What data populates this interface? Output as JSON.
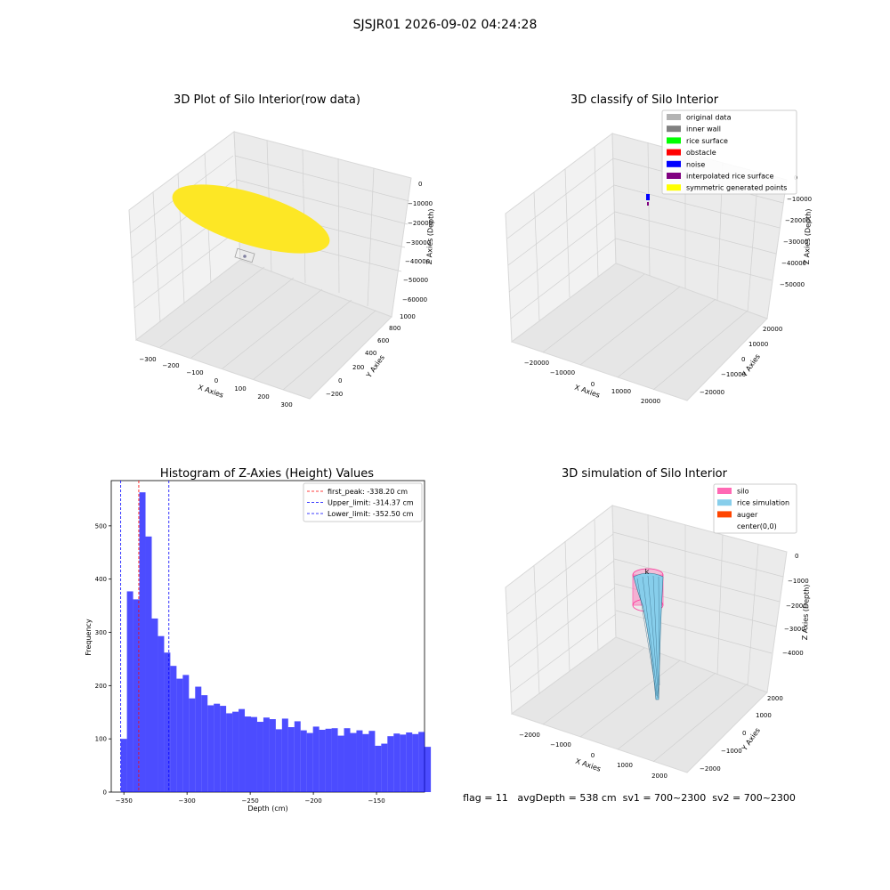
{
  "suptitle": "SJSJR01 2026-09-02 04:24:28",
  "status_line": "flag = 11   avgDepth = 538 cm  sv1 = 700~2300  sv2 = 700~2300",
  "panels": {
    "raw": {
      "title": "3D Plot of Silo Interior(row data)",
      "xlabel": "X Axies",
      "ylabel": "Y Axies",
      "zlabel": "Z Axies (Depth)",
      "xticks": [
        "−300",
        "−200",
        "−100",
        "0",
        "100",
        "200",
        "300"
      ],
      "yticks": [
        "−200",
        "0",
        "200",
        "400",
        "600",
        "800",
        "1000"
      ],
      "zticks": [
        "0",
        "−10000",
        "−20000",
        "−30000",
        "−40000",
        "−50000",
        "−60000"
      ]
    },
    "classify": {
      "title": "3D classify of Silo Interior",
      "xlabel": "X Axies",
      "ylabel": "Y Axies",
      "zlabel": "Z Axies (Depth)",
      "xticks": [
        "−20000",
        "−10000",
        "0",
        "10000",
        "20000"
      ],
      "yticks": [
        "−20000",
        "−10000",
        "0",
        "10000",
        "20000"
      ],
      "zticks": [
        "0",
        "−10000",
        "−20000",
        "−30000",
        "−40000",
        "−50000"
      ],
      "legend": [
        {
          "label": "original data",
          "color": "#b3b3b3"
        },
        {
          "label": "inner wall",
          "color": "#808080"
        },
        {
          "label": "rice surface",
          "color": "#00ff00"
        },
        {
          "label": "obstacle",
          "color": "#ff0000"
        },
        {
          "label": "noise",
          "color": "#0000ff"
        },
        {
          "label": "interpolated rice surface",
          "color": "#800080"
        },
        {
          "label": "symmetric generated points",
          "color": "#ffff00"
        }
      ]
    },
    "simulation": {
      "title": "3D simulation of Silo Interior",
      "xlabel": "X Axies",
      "ylabel": "Y Axies",
      "zlabel": "Z Axies (Depth)",
      "xticks": [
        "−2000",
        "−1000",
        "0",
        "1000",
        "2000"
      ],
      "yticks": [
        "−2000",
        "−1000",
        "0",
        "1000",
        "2000"
      ],
      "zticks": [
        "0",
        "−1000",
        "−2000",
        "−3000",
        "−4000"
      ],
      "legend": [
        {
          "label": "silo",
          "color": "#ff69b4"
        },
        {
          "label": "rice simulation",
          "color": "#87ceeb"
        },
        {
          "label": "auger",
          "color": "#ff4500"
        },
        {
          "label": "center(0,0)",
          "color": "#ffffff"
        }
      ]
    }
  },
  "chart_data": {
    "type": "bar",
    "title": "Histogram of Z-Axies (Height) Values",
    "xlabel": "Depth (cm)",
    "ylabel": "Frequency",
    "xlim": [
      -360,
      -112
    ],
    "ylim": [
      0,
      585
    ],
    "xticks": [
      -350,
      -300,
      -250,
      -200,
      -150
    ],
    "xtick_labels": [
      "−350",
      "−300",
      "−250",
      "−200",
      "−150"
    ],
    "yticks": [
      0,
      100,
      200,
      300,
      400,
      500
    ],
    "bar_color": "#0000ff",
    "bin_start": -352.5,
    "bin_width": 4.91,
    "values": [
      100,
      377,
      362,
      563,
      480,
      326,
      293,
      262,
      237,
      213,
      220,
      176,
      198,
      182,
      163,
      166,
      162,
      148,
      151,
      156,
      142,
      141,
      132,
      140,
      137,
      118,
      138,
      122,
      133,
      116,
      111,
      123,
      117,
      119,
      120,
      106,
      120,
      111,
      116,
      109,
      115,
      87,
      91,
      105,
      110,
      108,
      112,
      109,
      113,
      85
    ],
    "lines": [
      {
        "label": "first_peak: -338.20 cm",
        "x": -338.2,
        "color": "#ff0000"
      },
      {
        "label": "Upper_limit: -314.37 cm",
        "x": -314.37,
        "color": "#0000ff"
      },
      {
        "label": "Lower_limit: -352.50 cm",
        "x": -352.5,
        "color": "#0000ff"
      }
    ],
    "legend_position": "top-right"
  }
}
